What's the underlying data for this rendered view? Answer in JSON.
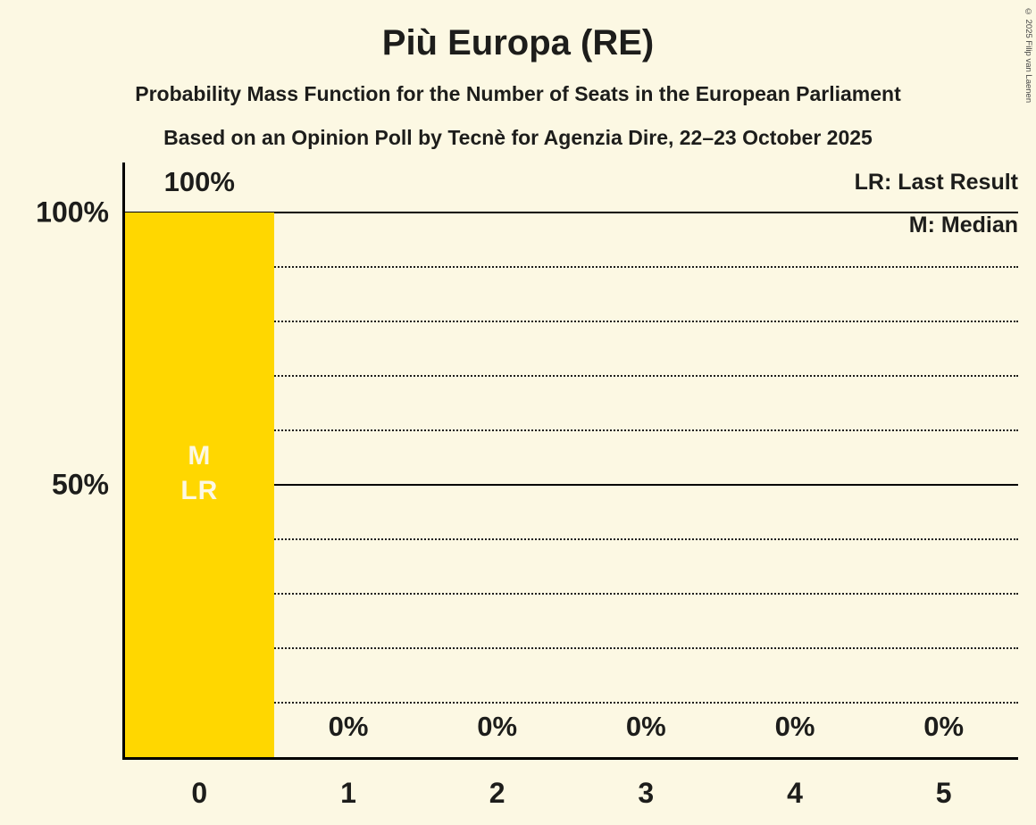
{
  "title": "Più Europa (RE)",
  "subtitle1": "Probability Mass Function for the Number of Seats in the European Parliament",
  "subtitle2": "Based on an Opinion Poll by Tecnè for Agenzia Dire, 22–23 October 2025",
  "copyright": "© 2025 Filip van Laenen",
  "legend": {
    "lr": "LR: Last Result",
    "m": "M: Median"
  },
  "colors": {
    "background": "#FCF8E3",
    "bar": "#FFD700",
    "text": "#1D1D1B",
    "bar_label": "#FCF8E3"
  },
  "chart_data": {
    "type": "bar",
    "title": "Più Europa (RE)",
    "categories": [
      "0",
      "1",
      "2",
      "3",
      "4",
      "5"
    ],
    "values": [
      100,
      0,
      0,
      0,
      0,
      0
    ],
    "value_labels": [
      "100%",
      "0%",
      "0%",
      "0%",
      "0%",
      "0%"
    ],
    "xlabel": "",
    "ylabel": "",
    "ylim": [
      0,
      100
    ],
    "yticks": [
      {
        "value": 50,
        "label": "50%"
      },
      {
        "value": 100,
        "label": "100%"
      }
    ],
    "grid_minor_step": 10,
    "grid": true,
    "legend_position": "top-right",
    "annotations": [
      {
        "category_index": 0,
        "lines": [
          {
            "text": "M",
            "name": "median-marker"
          },
          {
            "text": "LR",
            "name": "last-result-marker"
          }
        ]
      }
    ]
  }
}
